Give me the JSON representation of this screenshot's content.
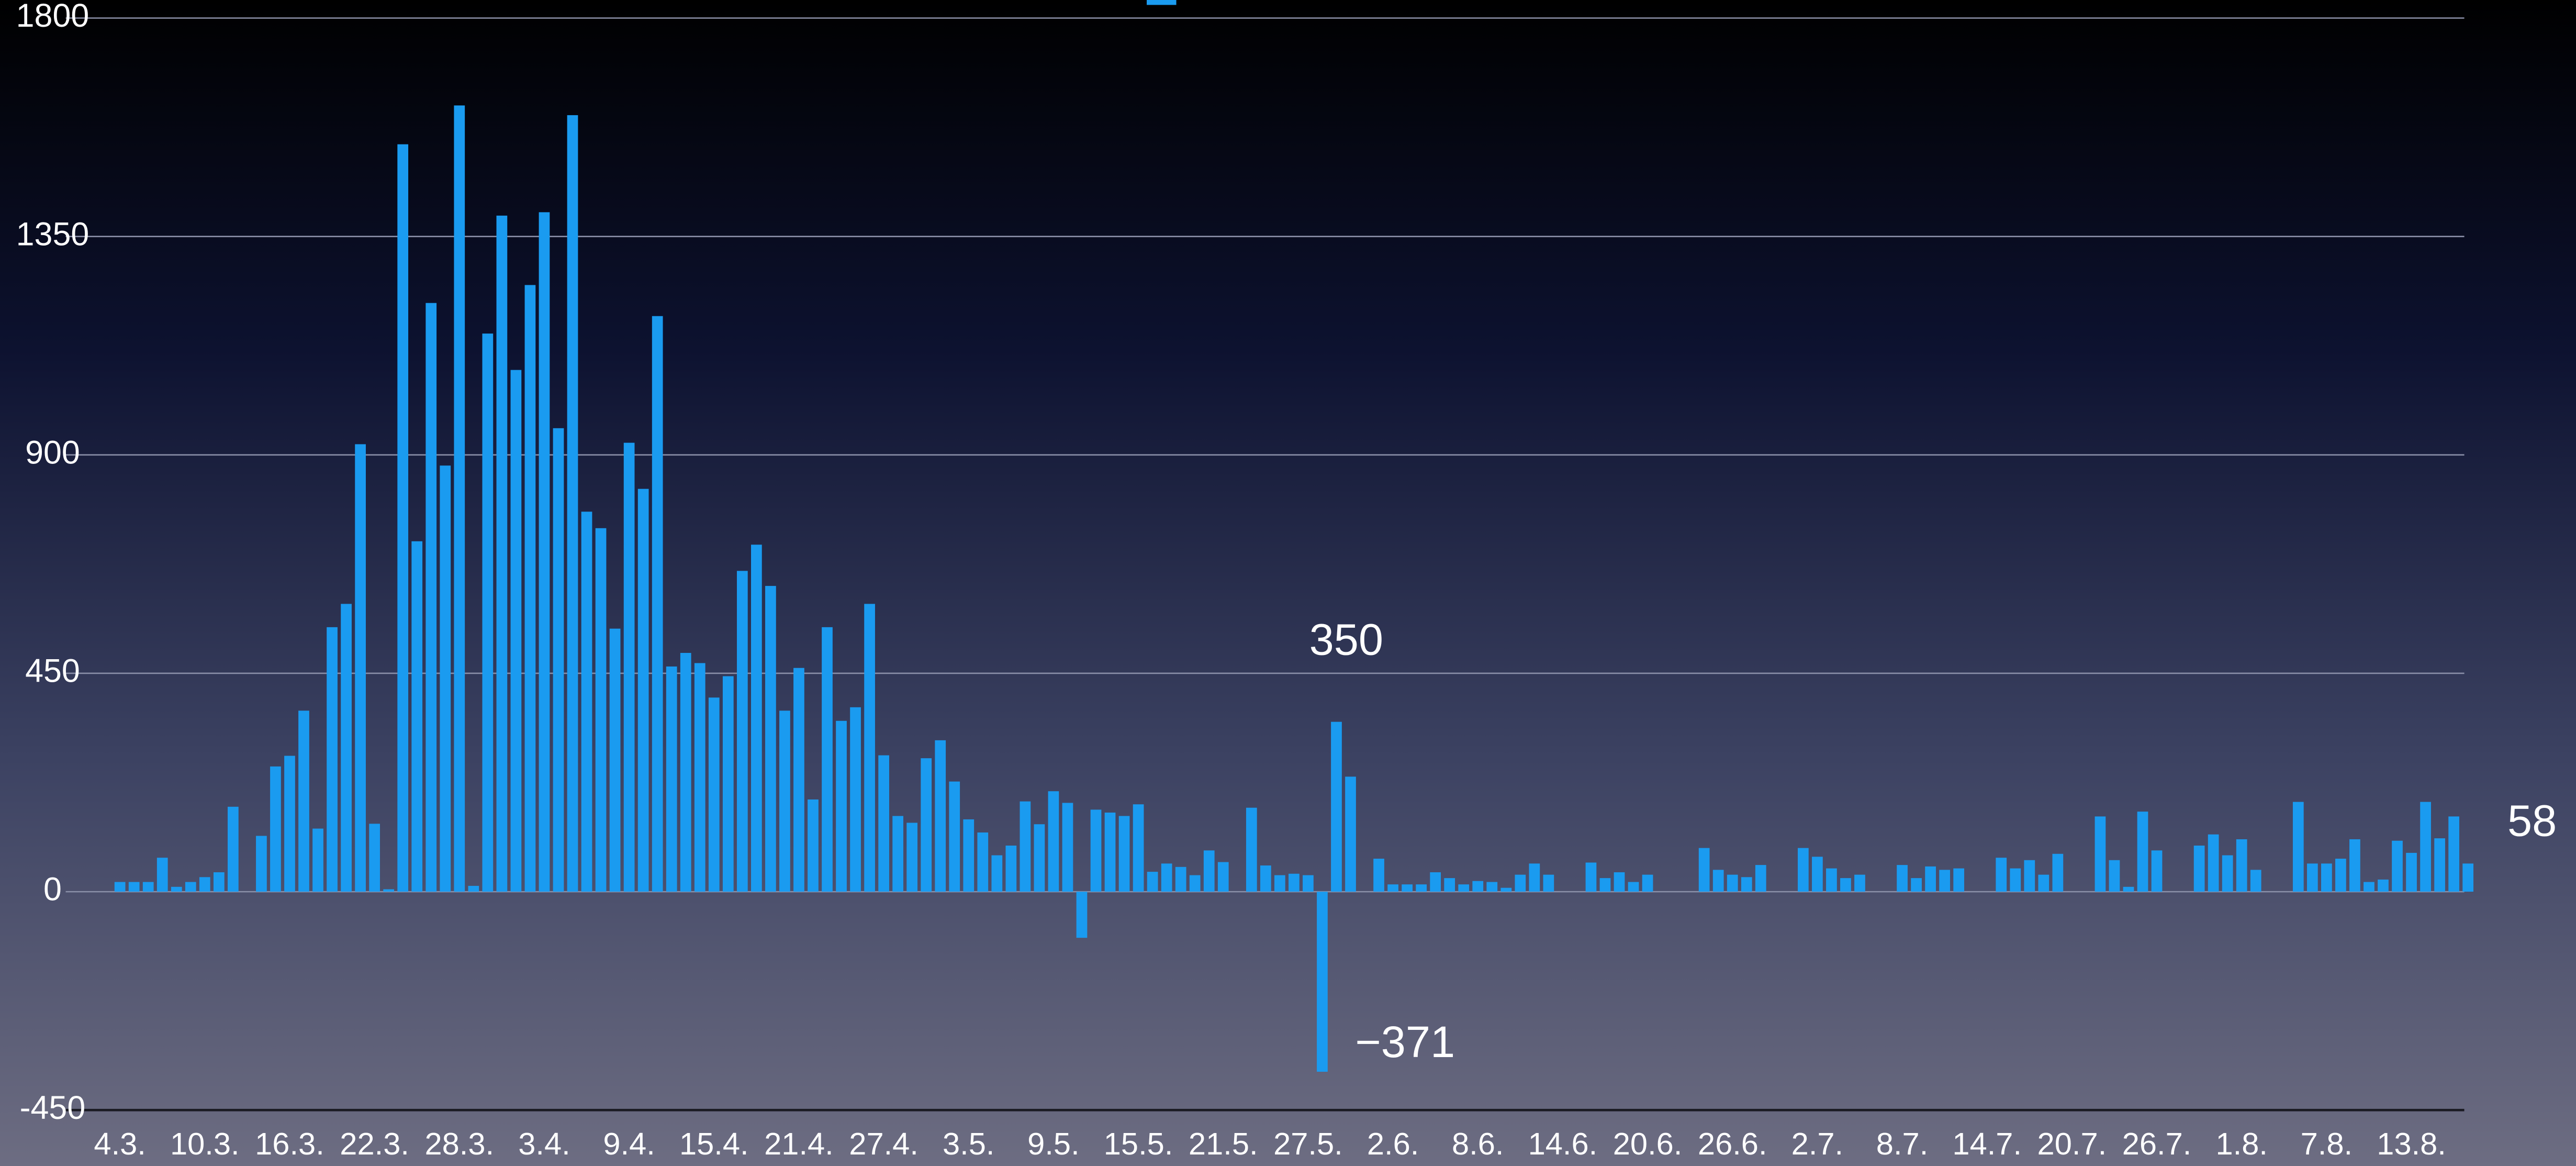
{
  "chart_data": {
    "type": "bar",
    "color": "#1a9bf0",
    "categories": [
      "4.3.",
      null,
      null,
      null,
      null,
      null,
      "10.3.",
      null,
      null,
      null,
      null,
      null,
      "16.3.",
      null,
      null,
      null,
      null,
      null,
      "22.3.",
      null,
      null,
      null,
      null,
      null,
      "28.3.",
      null,
      null,
      null,
      null,
      null,
      "3.4.",
      null,
      null,
      null,
      null,
      null,
      "9.4.",
      null,
      null,
      null,
      null,
      null,
      "15.4.",
      null,
      null,
      null,
      null,
      null,
      "21.4.",
      null,
      null,
      null,
      null,
      null,
      "27.4.",
      null,
      null,
      null,
      null,
      null,
      "3.5.",
      null,
      null,
      null,
      null,
      null,
      "9.5.",
      null,
      null,
      null,
      null,
      null,
      "15.5.",
      null,
      null,
      null,
      null,
      null,
      "21.5.",
      null,
      null,
      null,
      null,
      null,
      "27.5.",
      null,
      null,
      null,
      null,
      null,
      "2.6.",
      null,
      null,
      null,
      null,
      null,
      "8.6.",
      null,
      null,
      null,
      null,
      null,
      "14.6.",
      null,
      null,
      null,
      null,
      null,
      "20.6.",
      null,
      null,
      null,
      null,
      null,
      "26.6.",
      null,
      null,
      null,
      null,
      null,
      "2.7.",
      null,
      null,
      null,
      null,
      null,
      "8.7.",
      null,
      null,
      null,
      null,
      null,
      "14.7.",
      null,
      null,
      null,
      null,
      null,
      "20.7.",
      null,
      null,
      null,
      null,
      null,
      "26.7.",
      null,
      null,
      null,
      null,
      null,
      "1.8.",
      null,
      null,
      null,
      null,
      null,
      "7.8.",
      null,
      null,
      null,
      null,
      null,
      "13.8.",
      null,
      null,
      null,
      null
    ],
    "values": [
      20,
      20,
      20,
      70,
      10,
      20,
      30,
      40,
      175,
      0,
      115,
      258,
      280,
      373,
      130,
      545,
      593,
      922,
      140,
      5,
      1540,
      722,
      1213,
      878,
      1620,
      12,
      1150,
      1393,
      1075,
      1250,
      1400,
      955,
      1600,
      783,
      749,
      542,
      925,
      830,
      1186,
      464,
      492,
      471,
      400,
      444,
      661,
      715,
      630,
      373,
      461,
      190,
      545,
      352,
      380,
      593,
      281,
      156,
      142,
      275,
      312,
      227,
      149,
      122,
      75,
      95,
      186,
      139,
      207,
      183,
      -95,
      169,
      163,
      156,
      180,
      41,
      58,
      51,
      34,
      85,
      61,
      0,
      173,
      54,
      34,
      37,
      34,
      -371,
      350,
      237,
      0,
      68,
      15,
      15,
      15,
      40,
      28,
      15,
      22,
      20,
      8,
      35,
      58,
      35,
      0,
      0,
      60,
      28,
      40,
      20,
      35,
      0,
      0,
      0,
      90,
      45,
      35,
      30,
      55,
      0,
      0,
      90,
      72,
      48,
      28,
      35,
      0,
      0,
      55,
      28,
      52,
      45,
      48,
      0,
      0,
      70,
      48,
      65,
      35,
      78,
      0,
      0,
      155,
      65,
      10,
      165,
      85,
      0,
      0,
      95,
      118,
      75,
      108,
      45,
      0,
      0,
      185,
      58,
      58,
      68,
      108,
      20,
      25,
      105,
      80,
      185,
      110,
      155,
      58
    ],
    "value_labels": [
      null,
      null,
      null,
      null,
      null,
      null,
      null,
      null,
      null,
      null,
      null,
      null,
      null,
      null,
      null,
      null,
      null,
      null,
      null,
      null,
      null,
      null,
      null,
      null,
      null,
      null,
      null,
      null,
      null,
      null,
      null,
      null,
      null,
      null,
      null,
      null,
      null,
      null,
      null,
      null,
      null,
      null,
      null,
      null,
      null,
      null,
      null,
      null,
      null,
      null,
      null,
      null,
      null,
      null,
      null,
      null,
      null,
      null,
      null,
      null,
      null,
      null,
      null,
      null,
      null,
      null,
      null,
      null,
      null,
      null,
      null,
      null,
      null,
      null,
      null,
      null,
      null,
      null,
      null,
      null,
      null,
      null,
      null,
      null,
      null,
      "−371",
      "350",
      null,
      null,
      null,
      null,
      null,
      null,
      null,
      null,
      null,
      null,
      null,
      null,
      null,
      null,
      null,
      null,
      null,
      null,
      null,
      null,
      null,
      null,
      null,
      null,
      null,
      null,
      null,
      null,
      null,
      null,
      null,
      null,
      null,
      null,
      null,
      null,
      null,
      null,
      null,
      null,
      null,
      null,
      null,
      null,
      null,
      null,
      null,
      null,
      null,
      null,
      null,
      null,
      null,
      null,
      null,
      null,
      null,
      null,
      null,
      null,
      null,
      null,
      null,
      null,
      null,
      null,
      null,
      null,
      null,
      null,
      null,
      null,
      null,
      null,
      null,
      null,
      null,
      null,
      null,
      "58"
    ],
    "ylim": [
      -450,
      1800
    ],
    "yticks": [
      -450,
      0,
      450,
      900,
      1350,
      1800
    ],
    "grid": true
  }
}
